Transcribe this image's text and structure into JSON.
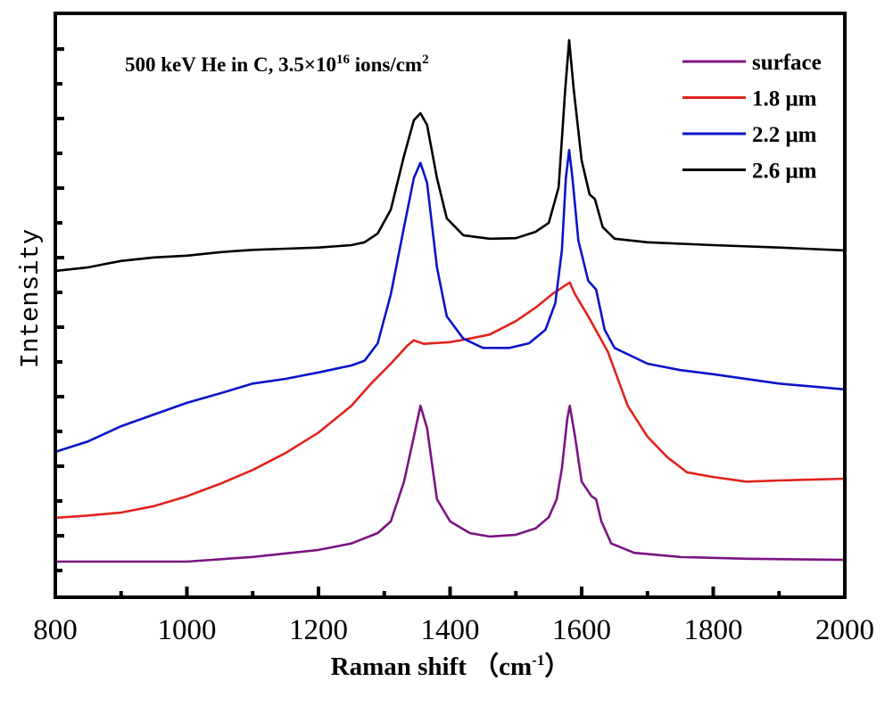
{
  "chart_data": {
    "type": "line",
    "title": "",
    "annotation": {
      "prefix": "500 keV He in C, 3.5×10",
      "sup": "16",
      "mid": " ions/cm",
      "sup2": "2"
    },
    "xlabel": {
      "main": "Raman shift （cm",
      "sup": "-1",
      "close": "）"
    },
    "ylabel": "Intensity",
    "xlim": [
      800,
      2000
    ],
    "ylim": [
      0,
      100
    ],
    "xticks": [
      800,
      1000,
      1200,
      1400,
      1600,
      1800,
      2000
    ],
    "xtick_labels": [
      "800",
      "1000",
      "1200",
      "1400",
      "1600",
      "1800",
      "2000"
    ],
    "yticks_labeled": false,
    "grid": false,
    "legend_position": "top-right",
    "series": [
      {
        "name": "surface",
        "color": "#7b1482",
        "x": [
          800,
          1000,
          1100,
          1200,
          1250,
          1290,
          1310,
          1330,
          1345,
          1355,
          1365,
          1380,
          1400,
          1430,
          1460,
          1500,
          1530,
          1550,
          1562,
          1570,
          1578,
          1582,
          1590,
          1600,
          1615,
          1622,
          1630,
          1645,
          1680,
          1750,
          1850,
          2000
        ],
        "y": [
          6.1,
          6.1,
          6.9,
          8.1,
          9.2,
          11.0,
          13.0,
          19.8,
          27.5,
          32.8,
          29.0,
          16.8,
          13.0,
          11.0,
          10.4,
          10.7,
          11.8,
          13.7,
          16.8,
          22.1,
          30.5,
          32.8,
          27.5,
          19.8,
          17.3,
          16.8,
          13.0,
          9.2,
          7.6,
          6.9,
          6.6,
          6.4
        ]
      },
      {
        "name": "1.8 μm",
        "color": "#e0231c",
        "x": [
          800,
          850,
          900,
          950,
          1000,
          1050,
          1100,
          1150,
          1200,
          1250,
          1280,
          1310,
          1335,
          1345,
          1360,
          1400,
          1430,
          1460,
          1500,
          1530,
          1555,
          1575,
          1582,
          1590,
          1610,
          1640,
          1670,
          1700,
          1730,
          1760,
          1800,
          1850,
          1900,
          2000
        ],
        "y": [
          13.6,
          14.0,
          14.5,
          15.6,
          17.3,
          19.4,
          21.8,
          24.7,
          28.2,
          32.8,
          36.6,
          40.0,
          43.1,
          44.0,
          43.4,
          43.7,
          44.3,
          45.0,
          47.3,
          49.6,
          51.9,
          53.4,
          53.9,
          51.9,
          48.1,
          42.0,
          32.8,
          27.5,
          24.0,
          21.4,
          20.6,
          19.8,
          20.0,
          20.3
        ]
      },
      {
        "name": "2.2 μm",
        "color": "#0a14c8",
        "x": [
          800,
          850,
          900,
          950,
          1000,
          1050,
          1100,
          1150,
          1200,
          1250,
          1270,
          1290,
          1310,
          1330,
          1345,
          1355,
          1365,
          1380,
          1395,
          1420,
          1450,
          1490,
          1520,
          1545,
          1560,
          1570,
          1576,
          1581,
          1586,
          1595,
          1610,
          1622,
          1635,
          1650,
          1700,
          1750,
          1800,
          1900,
          2000
        ],
        "y": [
          24.9,
          26.7,
          29.3,
          31.3,
          33.3,
          34.9,
          36.6,
          37.4,
          38.5,
          39.7,
          40.5,
          43.5,
          51.9,
          63.4,
          71.8,
          74.4,
          71.0,
          56.5,
          48.1,
          44.3,
          42.7,
          42.7,
          43.5,
          45.8,
          50.4,
          59.5,
          71.8,
          76.6,
          71.8,
          61.1,
          54.2,
          52.7,
          45.8,
          42.7,
          40.0,
          38.9,
          38.2,
          36.6,
          35.6
        ]
      },
      {
        "name": "2.6 μm",
        "color": "#000000",
        "x": [
          800,
          850,
          900,
          950,
          1000,
          1050,
          1100,
          1150,
          1200,
          1250,
          1270,
          1290,
          1310,
          1330,
          1345,
          1355,
          1365,
          1380,
          1395,
          1420,
          1460,
          1500,
          1530,
          1550,
          1565,
          1575,
          1581,
          1588,
          1600,
          1612,
          1620,
          1632,
          1650,
          1700,
          1800,
          1900,
          2000
        ],
        "y": [
          55.9,
          56.5,
          57.6,
          58.2,
          58.5,
          59.1,
          59.5,
          59.7,
          59.9,
          60.3,
          60.8,
          62.3,
          66.4,
          75.6,
          81.7,
          82.9,
          80.9,
          71.8,
          64.9,
          62.0,
          61.4,
          61.5,
          62.6,
          64.1,
          70.2,
          87.0,
          95.4,
          87.0,
          74.8,
          69.0,
          68.2,
          63.4,
          61.4,
          60.8,
          60.3,
          59.9,
          59.4
        ]
      }
    ]
  }
}
